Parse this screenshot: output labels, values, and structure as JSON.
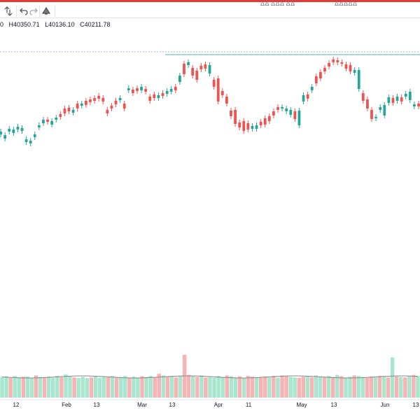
{
  "toolbar": {
    "top_right_1": "ΔΔ ΔΔΔ ΔΔ",
    "top_right_2": "ΔΔΔΔΔ"
  },
  "legend": {
    "open_tail": "0",
    "high": "H40350.71",
    "low": "L40136.10",
    "close": "C40211.78"
  },
  "colors": {
    "up": "#26a69a",
    "down": "#ef5350",
    "vol_up": "#a8e6cf",
    "vol_down": "#f8b4b4",
    "ma": "#888888",
    "hline_teal": "#4db6ac",
    "hline_blue": "#7b9fd4"
  },
  "chart_data": {
    "type": "candlestick",
    "x_ticks": [
      "12",
      "Feb",
      "13",
      "Mar",
      "13",
      "Apr",
      "11",
      "May",
      "13",
      "Jun",
      "13"
    ],
    "candles": [
      {
        "o": 192,
        "c": 188
      },
      {
        "o": 198,
        "c": 193
      },
      {
        "o": 188,
        "c": 184
      },
      {
        "o": 190,
        "c": 185
      },
      {
        "o": 185,
        "c": 181
      },
      {
        "o": 187,
        "c": 183
      },
      {
        "o": 203,
        "c": 199
      },
      {
        "o": 205,
        "c": 201
      },
      {
        "o": 196,
        "c": 192
      },
      {
        "o": 182,
        "c": 179
      },
      {
        "o": 176,
        "c": 171
      },
      {
        "o": 171,
        "c": 174
      },
      {
        "o": 178,
        "c": 173
      },
      {
        "o": 171,
        "c": 168
      },
      {
        "o": 163,
        "c": 167
      },
      {
        "o": 155,
        "c": 162
      },
      {
        "o": 154,
        "c": 159
      },
      {
        "o": 161,
        "c": 157
      },
      {
        "o": 148,
        "c": 155
      },
      {
        "o": 151,
        "c": 148
      },
      {
        "o": 144,
        "c": 150
      },
      {
        "o": 142,
        "c": 146
      },
      {
        "o": 140,
        "c": 144
      },
      {
        "o": 137,
        "c": 141
      },
      {
        "o": 140,
        "c": 145
      },
      {
        "o": 157,
        "c": 162
      },
      {
        "o": 151,
        "c": 155
      },
      {
        "o": 144,
        "c": 149
      },
      {
        "o": 143,
        "c": 140
      },
      {
        "o": 148,
        "c": 155
      },
      {
        "o": 129,
        "c": 126
      },
      {
        "o": 128,
        "c": 133
      },
      {
        "o": 126,
        "c": 130
      },
      {
        "o": 129,
        "c": 124
      },
      {
        "o": 127,
        "c": 131
      },
      {
        "o": 138,
        "c": 144
      },
      {
        "o": 135,
        "c": 140
      },
      {
        "o": 140,
        "c": 136
      },
      {
        "o": 133,
        "c": 137
      },
      {
        "o": 134,
        "c": 130
      },
      {
        "o": 131,
        "c": 127
      },
      {
        "o": 124,
        "c": 129
      },
      {
        "o": 117,
        "c": 108
      },
      {
        "o": 91,
        "c": 106
      },
      {
        "o": 93,
        "c": 89
      },
      {
        "o": 97,
        "c": 108
      },
      {
        "o": 101,
        "c": 114
      },
      {
        "o": 94,
        "c": 99
      },
      {
        "o": 92,
        "c": 98
      },
      {
        "o": 105,
        "c": 93
      },
      {
        "o": 114,
        "c": 124
      },
      {
        "o": 112,
        "c": 145
      },
      {
        "o": 130,
        "c": 136
      },
      {
        "o": 138,
        "c": 148
      },
      {
        "o": 158,
        "c": 166
      },
      {
        "o": 157,
        "c": 177
      },
      {
        "o": 175,
        "c": 182
      },
      {
        "o": 173,
        "c": 187
      },
      {
        "o": 176,
        "c": 185
      },
      {
        "o": 184,
        "c": 180
      },
      {
        "o": 184,
        "c": 179
      },
      {
        "o": 174,
        "c": 179
      },
      {
        "o": 169,
        "c": 178
      },
      {
        "o": 166,
        "c": 173
      },
      {
        "o": 159,
        "c": 165
      },
      {
        "o": 153,
        "c": 157
      },
      {
        "o": 155,
        "c": 153
      },
      {
        "o": 159,
        "c": 155
      },
      {
        "o": 164,
        "c": 157
      },
      {
        "o": 159,
        "c": 170
      },
      {
        "o": 179,
        "c": 158
      },
      {
        "o": 145,
        "c": 136
      },
      {
        "o": 135,
        "c": 141
      },
      {
        "o": 129,
        "c": 124
      },
      {
        "o": 109,
        "c": 119
      },
      {
        "o": 103,
        "c": 112
      },
      {
        "o": 97,
        "c": 102
      },
      {
        "o": 90,
        "c": 95
      },
      {
        "o": 85,
        "c": 89
      },
      {
        "o": 86,
        "c": 89
      },
      {
        "o": 89,
        "c": 91
      },
      {
        "o": 92,
        "c": 98
      },
      {
        "o": 93,
        "c": 102
      },
      {
        "o": 104,
        "c": 100
      },
      {
        "o": 127,
        "c": 100
      },
      {
        "o": 133,
        "c": 144
      },
      {
        "o": 142,
        "c": 155
      },
      {
        "o": 157,
        "c": 170
      },
      {
        "o": 169,
        "c": 167
      },
      {
        "o": 157,
        "c": 153
      },
      {
        "o": 165,
        "c": 150
      },
      {
        "o": 147,
        "c": 139
      },
      {
        "o": 140,
        "c": 147
      },
      {
        "o": 144,
        "c": 138
      },
      {
        "o": 139,
        "c": 145
      },
      {
        "o": 138,
        "c": 134
      },
      {
        "o": 143,
        "c": 131
      },
      {
        "o": 152,
        "c": 149
      },
      {
        "o": 148,
        "c": 152
      }
    ],
    "volumes": [
      {
        "v": 0.82,
        "up": true
      },
      {
        "v": 0.85,
        "up": true
      },
      {
        "v": 0.78,
        "up": false
      },
      {
        "v": 0.86,
        "up": true
      },
      {
        "v": 0.8,
        "up": true
      },
      {
        "v": 0.83,
        "up": false
      },
      {
        "v": 0.84,
        "up": true
      },
      {
        "v": 0.79,
        "up": true
      },
      {
        "v": 0.88,
        "up": false
      },
      {
        "v": 0.82,
        "up": true
      },
      {
        "v": 0.8,
        "up": false
      },
      {
        "v": 0.84,
        "up": true
      },
      {
        "v": 0.79,
        "up": true
      },
      {
        "v": 0.86,
        "up": true
      },
      {
        "v": 0.81,
        "up": false
      },
      {
        "v": 0.92,
        "up": true
      },
      {
        "v": 0.85,
        "up": true
      },
      {
        "v": 0.8,
        "up": false
      },
      {
        "v": 0.78,
        "up": true
      },
      {
        "v": 0.82,
        "up": true
      },
      {
        "v": 0.77,
        "up": true
      },
      {
        "v": 0.8,
        "up": false
      },
      {
        "v": 0.84,
        "up": true
      },
      {
        "v": 0.79,
        "up": true
      },
      {
        "v": 0.83,
        "up": true
      },
      {
        "v": 0.82,
        "up": false
      },
      {
        "v": 0.86,
        "up": true
      },
      {
        "v": 0.79,
        "up": false
      },
      {
        "v": 0.81,
        "up": true
      },
      {
        "v": 0.86,
        "up": true
      },
      {
        "v": 0.78,
        "up": false
      },
      {
        "v": 0.83,
        "up": true
      },
      {
        "v": 0.8,
        "up": true
      },
      {
        "v": 0.85,
        "up": false
      },
      {
        "v": 0.82,
        "up": true
      },
      {
        "v": 0.86,
        "up": true
      },
      {
        "v": 0.79,
        "up": false
      },
      {
        "v": 0.95,
        "up": false
      },
      {
        "v": 0.88,
        "up": true
      },
      {
        "v": 0.82,
        "up": false
      },
      {
        "v": 0.83,
        "up": true
      },
      {
        "v": 0.8,
        "up": false
      },
      {
        "v": 0.86,
        "up": true
      },
      {
        "v": 1.7,
        "up": false
      },
      {
        "v": 0.9,
        "up": false
      },
      {
        "v": 0.85,
        "up": true
      },
      {
        "v": 0.82,
        "up": false
      },
      {
        "v": 0.88,
        "up": true
      },
      {
        "v": 0.8,
        "up": false
      },
      {
        "v": 0.84,
        "up": true
      },
      {
        "v": 0.79,
        "up": true
      },
      {
        "v": 0.86,
        "up": true
      },
      {
        "v": 0.82,
        "up": true
      },
      {
        "v": 0.88,
        "up": false
      },
      {
        "v": 0.85,
        "up": true
      },
      {
        "v": 0.8,
        "up": true
      },
      {
        "v": 0.84,
        "up": false
      },
      {
        "v": 0.79,
        "up": true
      },
      {
        "v": 0.86,
        "up": false
      },
      {
        "v": 0.83,
        "up": false
      },
      {
        "v": 0.8,
        "up": true
      },
      {
        "v": 0.82,
        "up": false
      },
      {
        "v": 0.84,
        "up": false
      },
      {
        "v": 0.8,
        "up": true
      },
      {
        "v": 0.86,
        "up": false
      },
      {
        "v": 0.79,
        "up": true
      },
      {
        "v": 0.88,
        "up": false
      },
      {
        "v": 0.85,
        "up": false
      },
      {
        "v": 0.82,
        "up": true
      },
      {
        "v": 0.8,
        "up": true
      },
      {
        "v": 0.78,
        "up": false
      },
      {
        "v": 0.83,
        "up": false
      },
      {
        "v": 0.86,
        "up": true
      },
      {
        "v": 0.81,
        "up": false
      },
      {
        "v": 0.88,
        "up": true
      },
      {
        "v": 0.84,
        "up": true
      },
      {
        "v": 0.8,
        "up": false
      },
      {
        "v": 0.86,
        "up": true
      },
      {
        "v": 0.82,
        "up": false
      },
      {
        "v": 0.9,
        "up": true
      },
      {
        "v": 0.85,
        "up": false
      },
      {
        "v": 0.8,
        "up": true
      },
      {
        "v": 0.83,
        "up": true
      },
      {
        "v": 0.88,
        "up": false
      },
      {
        "v": 0.86,
        "up": true
      },
      {
        "v": 0.82,
        "up": true
      },
      {
        "v": 0.79,
        "up": false
      },
      {
        "v": 0.84,
        "up": false
      },
      {
        "v": 0.8,
        "up": true
      },
      {
        "v": 0.86,
        "up": false
      },
      {
        "v": 0.83,
        "up": true
      },
      {
        "v": 0.8,
        "up": false
      },
      {
        "v": 1.6,
        "up": true
      },
      {
        "v": 0.84,
        "up": false
      },
      {
        "v": 0.82,
        "up": true
      },
      {
        "v": 0.8,
        "up": false
      },
      {
        "v": 0.86,
        "up": true
      },
      {
        "v": 0.9,
        "up": false
      },
      {
        "v": 0.85,
        "up": true
      }
    ]
  }
}
